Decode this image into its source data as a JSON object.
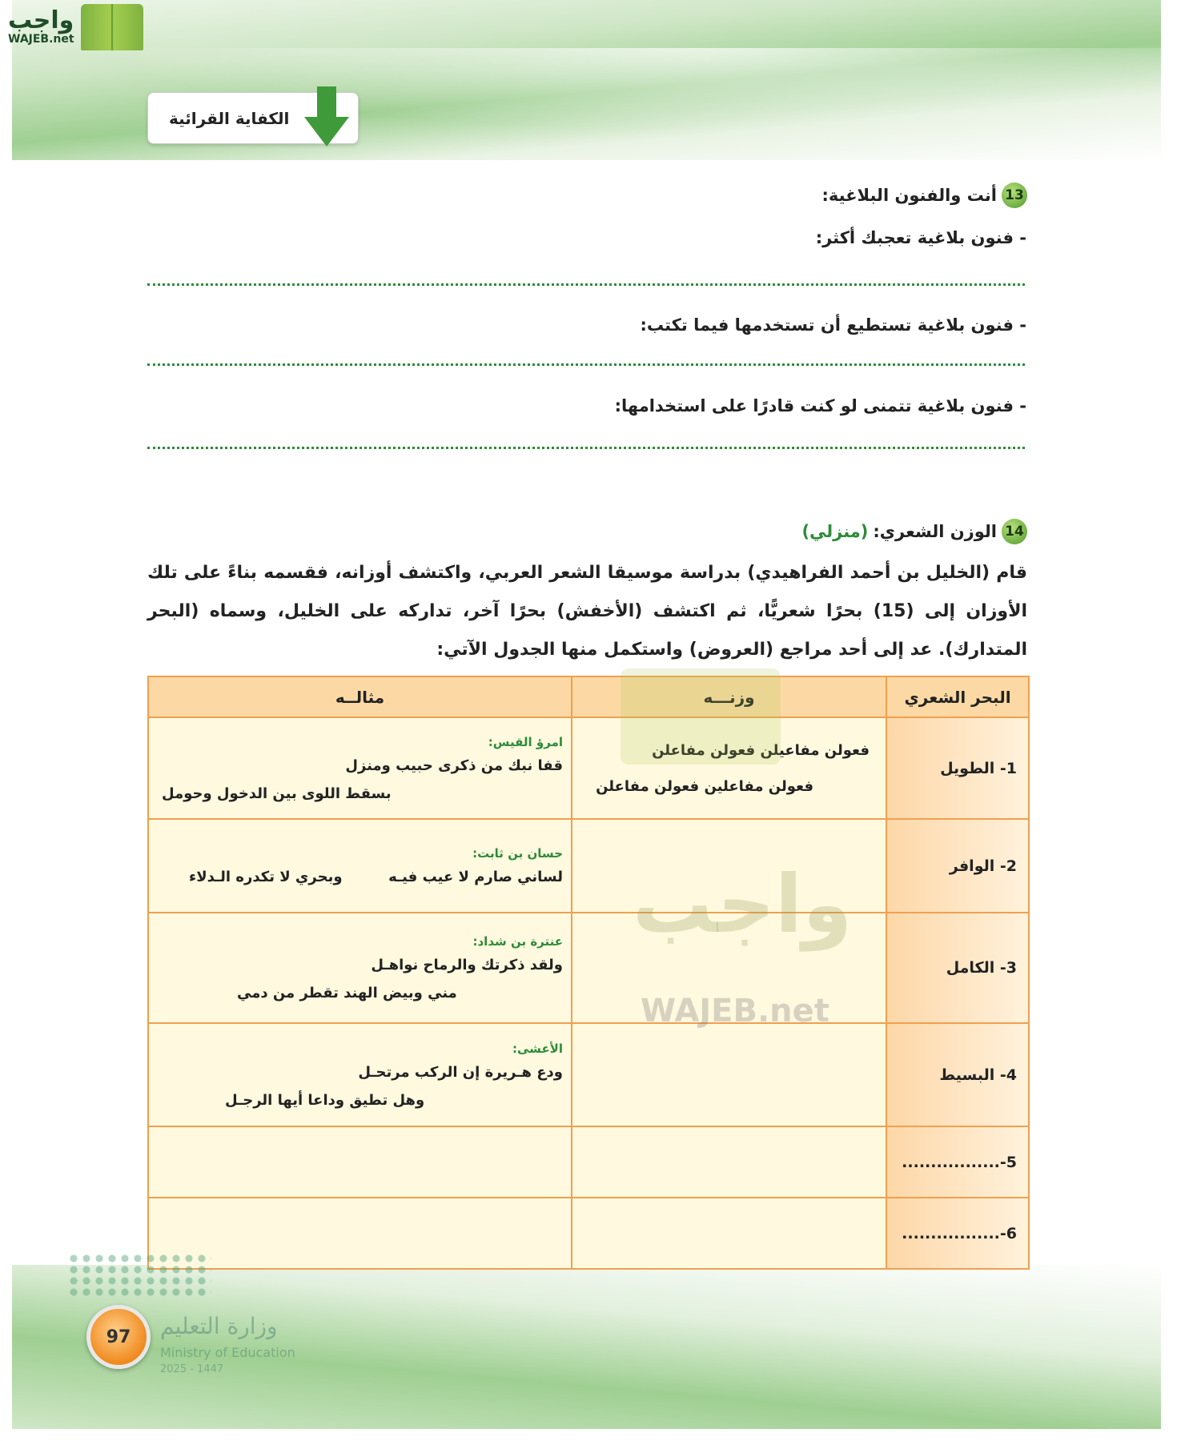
{
  "logo": {
    "arabic": "واجب",
    "latin": "WAJEB.net"
  },
  "section_title": "الكفاية القرائية",
  "q13": {
    "number": "13",
    "title": "أنت والفنون البلاغية:",
    "items": [
      "- فنون بلاغية تعجبك أكثر:",
      "- فنون بلاغية تستطيع أن تستخدمها فيما تكتب:",
      "- فنون بلاغية تتمنى لو كنت قادرًا على استخدامها:"
    ]
  },
  "q14": {
    "number": "14",
    "title": "الوزن الشعري:",
    "tag": "(منزلي)",
    "paragraph": "قام (الخليل بن أحمد الفراهيدي) بدراسة موسيقا الشعر العربي، واكتشف أوزانه، فقسمه بناءً على تلك الأوزان إلى (15) بحرًا شعريًّا، ثم اكتشف (الأخفش) بحرًا آخر، تداركه على الخليل، وسماه (البحر المتدارك). عد إلى أحد مراجع (العروض) واستكمل منها الجدول الآتي:"
  },
  "table": {
    "headers": [
      "البحر الشعري",
      "وزنـــه",
      "مثالــه"
    ],
    "rows": [
      {
        "bahr": "1- الطويل",
        "wazn": [
          "فعولن مفاعيلن فعولن مفاعلن",
          "فعولن مفاعلين فعولن مفاعلن"
        ],
        "poet": "امرؤ القيس:",
        "line1": "قفا نبك من ذكرى حبيب ومنزل",
        "line2": "بسقط اللوى بين الدخول وحومل"
      },
      {
        "bahr": "2- الوافر",
        "wazn": [
          "",
          ""
        ],
        "poet": "حسان بن ثابت:",
        "line1": "لساني صارم لا عيب فيـه",
        "line2": "وبحري لا تكدره الـدلاء"
      },
      {
        "bahr": "3- الكامل",
        "wazn": [
          "",
          ""
        ],
        "poet": "عنترة بن شداد:",
        "line1": "ولقد ذكرتك والرماح نواهـل",
        "line2": "مني وبيض الهند تقطر من دمي"
      },
      {
        "bahr": "4- البسيط",
        "wazn": [
          "",
          ""
        ],
        "poet": "الأعشى:",
        "line1": "ودع هـريرة إن الركب مرتحـل",
        "line2": "وهل تطيق وداعا أيها الرجـل"
      },
      {
        "bahr": "5-.................",
        "wazn": [
          "",
          ""
        ],
        "poet": "",
        "line1": "",
        "line2": ""
      },
      {
        "bahr": "6-.................",
        "wazn": [
          "",
          ""
        ],
        "poet": "",
        "line1": "",
        "line2": ""
      }
    ]
  },
  "watermark": {
    "arabic": "واجب",
    "latin": "WAJEB.net"
  },
  "footer": {
    "page_number": "97",
    "ministry_ar": "وزارة التعليم",
    "ministry_en": "Ministry of Education",
    "year": "2025 - 1447"
  }
}
